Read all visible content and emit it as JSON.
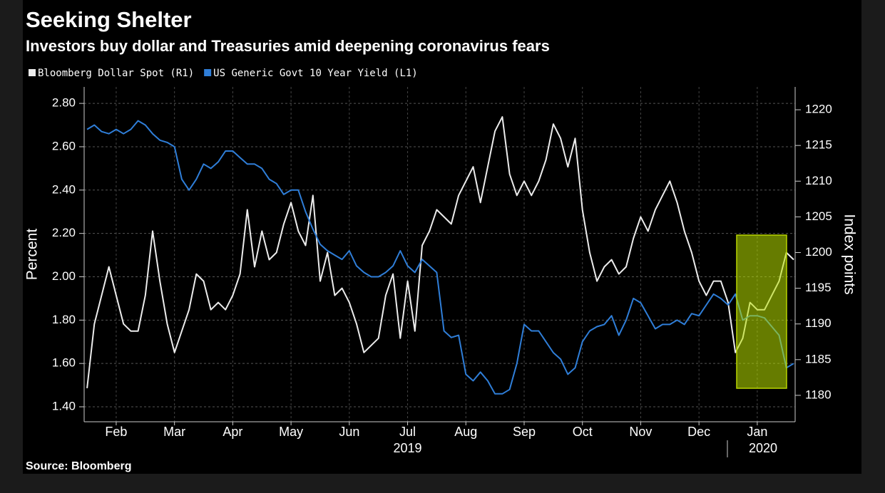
{
  "chart_data": {
    "type": "line",
    "title": "Seeking Shelter",
    "subtitle": "Investors buy dollar and Treasuries amid deepening coronavirus fears",
    "source": "Source: Bloomberg",
    "ylabel": "Percent",
    "y2label": "Index points",
    "x": [
      1,
      1.125,
      1.25,
      1.375,
      1.5,
      1.625,
      1.75,
      1.875,
      2,
      2.125,
      2.25,
      2.375,
      2.5,
      2.625,
      2.75,
      2.875,
      3,
      3.125,
      3.25,
      3.375,
      3.5,
      3.625,
      3.75,
      3.875,
      4,
      4.125,
      4.25,
      4.375,
      4.5,
      4.625,
      4.75,
      4.875,
      5,
      5.125,
      5.25,
      5.375,
      5.5,
      5.625,
      5.75,
      5.875,
      6,
      6.125,
      6.25,
      6.375,
      6.5,
      6.625,
      6.75,
      6.875,
      7,
      7.125,
      7.25,
      7.375,
      7.5,
      7.625,
      7.75,
      7.875,
      8,
      8.125,
      8.25,
      8.375,
      8.5,
      8.625,
      8.75,
      8.875,
      9,
      9.125,
      9.25,
      9.375,
      9.5,
      9.625,
      9.75,
      9.875,
      10,
      10.125,
      10.25,
      10.375,
      10.5,
      10.625,
      10.75,
      10.875,
      11,
      11.125,
      11.25,
      11.375,
      11.5,
      11.625,
      11.75,
      11.875,
      12,
      12.125,
      12.25,
      12.375,
      12.5,
      12.625,
      12.75,
      12.875,
      13,
      13.125
    ],
    "series": [
      {
        "name": "Bloomberg Dollar Spot (R1)",
        "color": "#ececec",
        "axis": "y2",
        "values": [
          1181,
          1190,
          1194,
          1198,
          1194,
          1190,
          1189,
          1189,
          1194,
          1203,
          1196,
          1190,
          1186,
          1189,
          1192,
          1197,
          1196,
          1192,
          1193,
          1192,
          1194,
          1197,
          1206,
          1198,
          1203,
          1199,
          1200,
          1204,
          1207,
          1203,
          1201,
          1208,
          1196,
          1200,
          1194,
          1195,
          1193,
          1190,
          1186,
          1187,
          1188,
          1194,
          1197,
          1188,
          1196,
          1189,
          1201,
          1203,
          1206,
          1205,
          1204,
          1208,
          1210,
          1212,
          1207,
          1212,
          1217,
          1219,
          1211,
          1208,
          1210,
          1208,
          1210,
          1213,
          1218,
          1216,
          1212,
          1216,
          1206,
          1200,
          1196,
          1198,
          1199,
          1197,
          1198,
          1202,
          1205,
          1203,
          1206,
          1208,
          1210,
          1207,
          1203,
          1200,
          1196,
          1194,
          1196,
          1196,
          1193,
          1186,
          1188,
          1193,
          1192,
          1192,
          1194,
          1196,
          1200,
          1199
        ]
      },
      {
        "name": "US Generic Govt 10 Year Yield (L1)",
        "color": "#2f7ed8",
        "values": [
          2.68,
          2.7,
          2.67,
          2.66,
          2.68,
          2.66,
          2.68,
          2.72,
          2.7,
          2.66,
          2.63,
          2.62,
          2.6,
          2.45,
          2.4,
          2.45,
          2.52,
          2.5,
          2.53,
          2.58,
          2.58,
          2.55,
          2.52,
          2.52,
          2.5,
          2.45,
          2.43,
          2.38,
          2.4,
          2.4,
          2.3,
          2.22,
          2.15,
          2.12,
          2.1,
          2.08,
          2.12,
          2.05,
          2.02,
          2.0,
          2.0,
          2.02,
          2.05,
          2.12,
          2.05,
          2.02,
          2.08,
          2.05,
          2.02,
          1.75,
          1.72,
          1.73,
          1.55,
          1.52,
          1.56,
          1.52,
          1.46,
          1.46,
          1.48,
          1.6,
          1.78,
          1.75,
          1.75,
          1.7,
          1.65,
          1.62,
          1.55,
          1.58,
          1.7,
          1.75,
          1.77,
          1.78,
          1.82,
          1.73,
          1.8,
          1.9,
          1.88,
          1.82,
          1.76,
          1.78,
          1.78,
          1.8,
          1.78,
          1.83,
          1.82,
          1.87,
          1.92,
          1.9,
          1.87,
          1.92,
          1.8,
          1.82,
          1.82,
          1.81,
          1.77,
          1.73,
          1.58,
          1.6
        ]
      }
    ],
    "xlim": [
      0.95,
      13.15
    ],
    "xticks": [
      {
        "value": 1.5,
        "label": "Feb"
      },
      {
        "value": 2.5,
        "label": "Mar"
      },
      {
        "value": 3.5,
        "label": "Apr"
      },
      {
        "value": 4.5,
        "label": "May"
      },
      {
        "value": 5.5,
        "label": "Jun"
      },
      {
        "value": 6.5,
        "label": "Jul"
      },
      {
        "value": 7.5,
        "label": "Aug"
      },
      {
        "value": 8.5,
        "label": "Sep"
      },
      {
        "value": 9.5,
        "label": "Oct"
      },
      {
        "value": 10.5,
        "label": "Nov"
      },
      {
        "value": 11.5,
        "label": "Dec"
      },
      {
        "value": 12.5,
        "label": "Jan"
      }
    ],
    "year_labels": [
      {
        "value": 6.5,
        "label": "2019"
      },
      {
        "value": 12.6,
        "label": "2020"
      }
    ],
    "ylim": [
      1.331,
      2.876
    ],
    "yticks": [
      {
        "value": 1.4,
        "label": "1.40"
      },
      {
        "value": 1.6,
        "label": "1.60"
      },
      {
        "value": 1.8,
        "label": "1.80"
      },
      {
        "value": 2.0,
        "label": "2.00"
      },
      {
        "value": 2.2,
        "label": "2.20"
      },
      {
        "value": 2.4,
        "label": "2.40"
      },
      {
        "value": 2.6,
        "label": "2.60"
      },
      {
        "value": 2.8,
        "label": "2.80"
      }
    ],
    "y2lim": [
      1176.3,
      1223.2
    ],
    "y2ticks": [
      1180,
      1185,
      1190,
      1195,
      1200,
      1205,
      1210,
      1215,
      1220
    ],
    "grid": true
  }
}
